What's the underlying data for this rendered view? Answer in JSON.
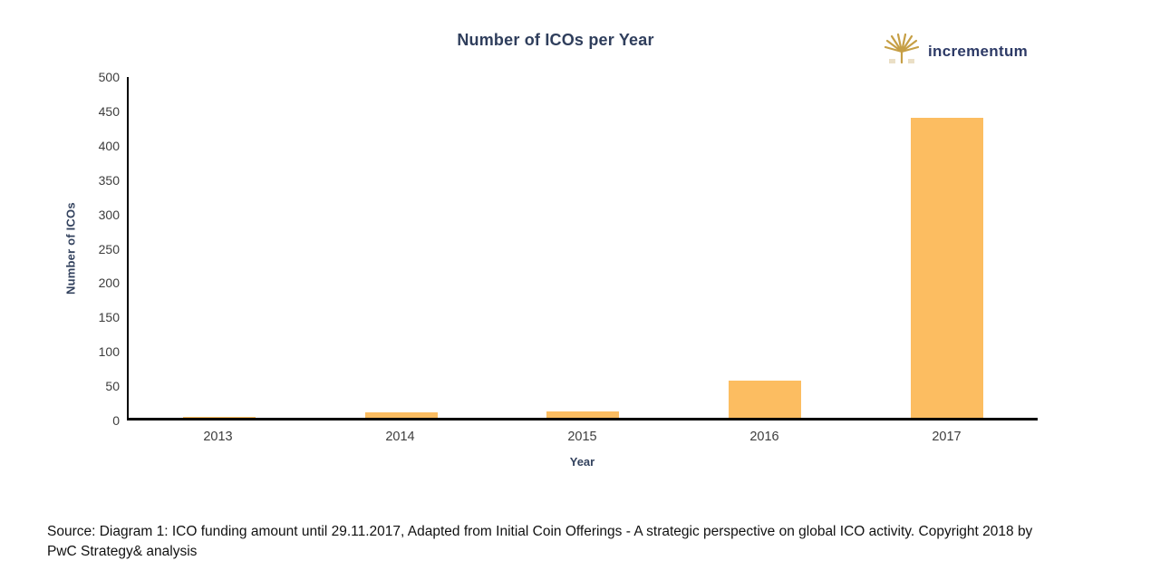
{
  "header": {
    "logo_text": "incrementum",
    "logo_icon": "tree-icon"
  },
  "chart_data": {
    "type": "bar",
    "title": "Number of ICOs per Year",
    "categories": [
      "2013",
      "2014",
      "2015",
      "2016",
      "2017"
    ],
    "values": [
      2,
      8,
      9,
      55,
      440
    ],
    "xlabel": "Year",
    "ylabel": "Number of ICOs",
    "ylim": [
      0,
      500
    ],
    "ytick_step": 50,
    "bar_color": "#FCBD61",
    "grid": false,
    "legend": false
  },
  "footer": {
    "source_text": "Source: Diagram 1: ICO funding amount until 29.11.2017, Adapted from Initial Coin Offerings - A strategic perspective on global ICO activity. Copyright 2018 by PwC Strategy& analysis"
  },
  "colors": {
    "bar": "#FCBD61",
    "title_navy": "#2F3E5C",
    "axis_label_navy": "#33425E",
    "logo_navy": "#2D3A66",
    "logo_gold": "#C69F45",
    "tick_gray": "#3D3D3D",
    "axis_black": "#000000"
  }
}
